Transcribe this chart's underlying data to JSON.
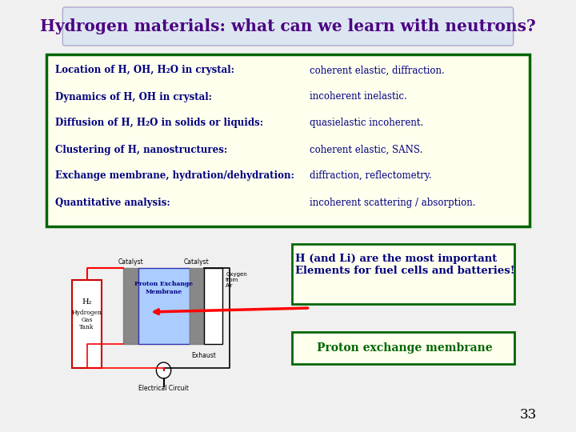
{
  "title": "Hydrogen materials: what can we learn with neutrons?",
  "title_color": "#4B0082",
  "title_bg": "#dce6f1",
  "bg_color": "#f0f0f0",
  "slide_bg": "#f0f0f0",
  "table_bg": "#ffffee",
  "table_border": "#006600",
  "rows": [
    [
      "Location of H, OH, H₂O in crystal:",
      "coherent elastic, diffraction."
    ],
    [
      "Dynamics of H, OH in crystal:",
      "incoherent inelastic."
    ],
    [
      "Diffusion of H, H₂O in solids or liquids:",
      "quasielastic incoherent."
    ],
    [
      "Clustering of H, nanostructures:",
      "coherent elastic, SANS."
    ],
    [
      "Exchange membrane, hydration/dehydration:",
      "diffraction, reflectometry."
    ],
    [
      "Quantitative analysis:",
      "incoherent scattering / absorption."
    ]
  ],
  "row_text_color": "#000080",
  "annotation1_text": "H (and Li) are the most important\nElements for fuel cells and batteries!",
  "annotation1_bg": "#ffffee",
  "annotation1_border": "#006600",
  "annotation1_color": "#000080",
  "annotation2_text": "Proton exchange membrane",
  "annotation2_bg": "#ffffee",
  "annotation2_border": "#006600",
  "annotation2_color": "#006600",
  "page_number": "33",
  "diagram_labels": {
    "catalyst_left": "Catalyst",
    "catalyst_right": "Catalyst",
    "pem": "Proton Exchange\nMembrane",
    "oxygen": "Oxygen\nfrom\nAir",
    "exhaust": "Exhaust",
    "h2": "H₂",
    "h2_tank": "Hydrogen\nGas\nTank",
    "electrical": "Electrical Circuit"
  }
}
